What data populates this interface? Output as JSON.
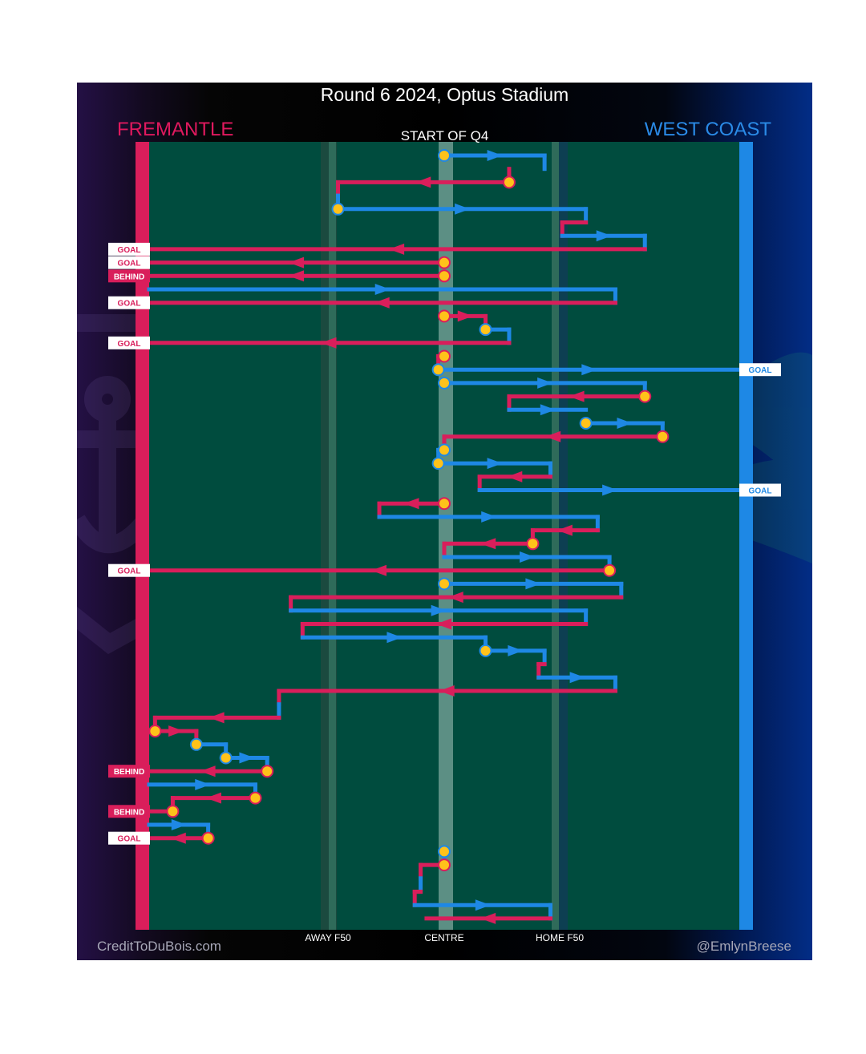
{
  "header": {
    "title": "Round 6 2024, Optus Stadium",
    "subtitle": "START OF Q4",
    "home_team": "FREMANTLE",
    "away_team": "WEST COAST"
  },
  "footer": {
    "credit_left": "CreditToDuBois.com",
    "credit_right": "@EmlynBreese"
  },
  "colors": {
    "fremantle": "#d91e5b",
    "west_coast": "#1e88e5",
    "ground": "#004c3e",
    "marker_fill": "#ffc21a"
  },
  "chart_data": {
    "type": "line",
    "description_axis": "x is field position from home goal (0) to away goal (100); each row is one possession chain in time order",
    "x_ticks": [
      {
        "label": "AWAY F50",
        "value": 32
      },
      {
        "label": "CENTRE",
        "value": 50
      },
      {
        "label": "HOME F50",
        "value": 68
      }
    ],
    "xlim": [
      0,
      100
    ],
    "rows": 57,
    "chains": [
      {
        "team": "west_coast",
        "segments": [
          [
            50,
            1,
            67,
            1
          ],
          [
            67,
            1,
            67,
            2
          ]
        ],
        "start_marker": [
          50,
          1
        ]
      },
      {
        "team": "fremantle",
        "segments": [
          [
            61,
            2,
            61,
            3
          ],
          [
            61,
            3,
            32,
            3
          ],
          [
            32,
            3,
            32,
            4
          ]
        ],
        "start_marker": [
          61,
          3
        ]
      },
      {
        "team": "west_coast",
        "segments": [
          [
            32,
            4,
            32,
            5
          ],
          [
            32,
            5,
            74,
            5
          ],
          [
            74,
            5,
            74,
            6
          ]
        ],
        "start_marker": [
          32,
          5
        ]
      },
      {
        "team": "fremantle",
        "segments": [
          [
            74,
            6,
            70,
            6
          ],
          [
            70,
            6,
            70,
            7
          ]
        ]
      },
      {
        "team": "west_coast",
        "segments": [
          [
            70,
            7,
            84,
            7
          ],
          [
            84,
            7,
            84,
            8
          ]
        ]
      },
      {
        "team": "fremantle",
        "segments": [
          [
            84,
            8,
            0,
            8
          ]
        ],
        "outcome": "GOAL"
      },
      {
        "team": "fremantle",
        "segments": [
          [
            50,
            9,
            0,
            9
          ]
        ],
        "outcome": "GOAL",
        "start_marker": [
          50,
          9
        ]
      },
      {
        "team": "fremantle",
        "segments": [
          [
            50,
            10,
            0,
            10
          ]
        ],
        "outcome": "BEHIND",
        "start_marker": [
          50,
          10
        ]
      },
      {
        "team": "west_coast",
        "segments": [
          [
            0,
            11,
            79,
            11
          ],
          [
            79,
            11,
            79,
            12
          ]
        ]
      },
      {
        "team": "fremantle",
        "segments": [
          [
            79,
            12,
            0,
            12
          ]
        ],
        "outcome": "GOAL"
      },
      {
        "team": "fremantle",
        "segments": [
          [
            50,
            13,
            57,
            13
          ],
          [
            57,
            13,
            57,
            14
          ]
        ],
        "start_marker": [
          50,
          13
        ]
      },
      {
        "team": "west_coast",
        "segments": [
          [
            57,
            14,
            61,
            14
          ],
          [
            61,
            14,
            61,
            15
          ]
        ],
        "start_marker": [
          57,
          14
        ]
      },
      {
        "team": "fremantle",
        "segments": [
          [
            61,
            15,
            0,
            15
          ]
        ],
        "outcome": "GOAL"
      },
      {
        "team": "fremantle",
        "segments": [
          [
            50,
            16,
            49,
            16
          ],
          [
            49,
            16,
            49,
            17
          ]
        ],
        "start_marker": [
          50,
          16
        ]
      },
      {
        "team": "west_coast",
        "segments": [
          [
            49,
            17,
            100,
            17
          ]
        ],
        "outcome": "GOAL",
        "start_marker": [
          49,
          17
        ]
      },
      {
        "team": "west_coast",
        "segments": [
          [
            50,
            18,
            84,
            18
          ],
          [
            84,
            18,
            84,
            19
          ]
        ],
        "start_marker": [
          50,
          18
        ]
      },
      {
        "team": "fremantle",
        "segments": [
          [
            84,
            19,
            61,
            19
          ],
          [
            61,
            19,
            61,
            20
          ]
        ],
        "start_marker": [
          84,
          19
        ]
      },
      {
        "team": "west_coast",
        "segments": [
          [
            61,
            20,
            74,
            20
          ]
        ]
      },
      {
        "team": "west_coast",
        "segments": [
          [
            74,
            21,
            87,
            21
          ],
          [
            87,
            21,
            87,
            22
          ]
        ],
        "start_marker": [
          74,
          21
        ]
      },
      {
        "team": "fremantle",
        "segments": [
          [
            87,
            22,
            50,
            22
          ],
          [
            50,
            22,
            50,
            23
          ]
        ],
        "start_marker": [
          87,
          22
        ]
      },
      {
        "team": "west_coast",
        "segments": [
          [
            50,
            23,
            49,
            23
          ],
          [
            49,
            23,
            49,
            24
          ]
        ],
        "start_marker": [
          50,
          23
        ]
      },
      {
        "team": "west_coast",
        "segments": [
          [
            49,
            24,
            68,
            24
          ],
          [
            68,
            24,
            68,
            25
          ]
        ],
        "start_marker": [
          49,
          24
        ]
      },
      {
        "team": "fremantle",
        "segments": [
          [
            68,
            25,
            56,
            25
          ],
          [
            56,
            25,
            56,
            26
          ]
        ]
      },
      {
        "team": "west_coast",
        "segments": [
          [
            56,
            26,
            100,
            26
          ]
        ],
        "outcome": "GOAL"
      },
      {
        "team": "fremantle",
        "segments": [
          [
            50,
            27,
            39,
            27
          ],
          [
            39,
            27,
            39,
            28
          ]
        ],
        "start_marker": [
          50,
          27
        ]
      },
      {
        "team": "west_coast",
        "segments": [
          [
            39,
            28,
            76,
            28
          ],
          [
            76,
            28,
            76,
            29
          ]
        ]
      },
      {
        "team": "fremantle",
        "segments": [
          [
            76,
            29,
            65,
            29
          ],
          [
            65,
            29,
            65,
            30
          ]
        ]
      },
      {
        "team": "fremantle",
        "segments": [
          [
            65,
            30,
            50,
            30
          ],
          [
            50,
            30,
            50,
            31
          ]
        ],
        "start_marker": [
          65,
          30
        ]
      },
      {
        "team": "west_coast",
        "segments": [
          [
            50,
            31,
            78,
            31
          ],
          [
            78,
            31,
            78,
            32
          ]
        ]
      },
      {
        "team": "fremantle",
        "segments": [
          [
            78,
            32,
            0,
            32
          ]
        ],
        "outcome": "GOAL",
        "start_marker": [
          78,
          32
        ]
      },
      {
        "team": "west_coast",
        "segments": [
          [
            50,
            33,
            80,
            33
          ],
          [
            80,
            33,
            80,
            34
          ]
        ],
        "start_marker": [
          50,
          33
        ]
      },
      {
        "team": "fremantle",
        "segments": [
          [
            80,
            34,
            24,
            34
          ],
          [
            24,
            34,
            24,
            35
          ]
        ]
      },
      {
        "team": "west_coast",
        "segments": [
          [
            24,
            35,
            74,
            35
          ],
          [
            74,
            35,
            74,
            36
          ]
        ]
      },
      {
        "team": "fremantle",
        "segments": [
          [
            74,
            36,
            26,
            36
          ],
          [
            26,
            36,
            26,
            37
          ]
        ]
      },
      {
        "team": "west_coast",
        "segments": [
          [
            26,
            37,
            57,
            37
          ],
          [
            57,
            37,
            57,
            38
          ]
        ]
      },
      {
        "team": "west_coast",
        "segments": [
          [
            57,
            38,
            67,
            38
          ],
          [
            67,
            38,
            67,
            39
          ]
        ],
        "start_marker": [
          57,
          38
        ]
      },
      {
        "team": "fremantle",
        "segments": [
          [
            67,
            39,
            66,
            39
          ],
          [
            66,
            39,
            66,
            40
          ]
        ]
      },
      {
        "team": "west_coast",
        "segments": [
          [
            66,
            40,
            79,
            40
          ],
          [
            79,
            40,
            79,
            41
          ]
        ]
      },
      {
        "team": "fremantle",
        "segments": [
          [
            79,
            41,
            22,
            41
          ],
          [
            22,
            41,
            22,
            42
          ]
        ]
      },
      {
        "team": "west_coast",
        "segments": [
          [
            22,
            42,
            22,
            43
          ]
        ]
      },
      {
        "team": "fremantle",
        "segments": [
          [
            22,
            43,
            1,
            43
          ],
          [
            1,
            43,
            1,
            44
          ]
        ]
      },
      {
        "team": "fremantle",
        "segments": [
          [
            1,
            44,
            8,
            44
          ],
          [
            8,
            44,
            8,
            45
          ]
        ],
        "start_marker": [
          1,
          44
        ]
      },
      {
        "team": "west_coast",
        "segments": [
          [
            8,
            45,
            13,
            45
          ],
          [
            13,
            45,
            13,
            46
          ]
        ],
        "start_marker": [
          8,
          45
        ]
      },
      {
        "team": "west_coast",
        "segments": [
          [
            13,
            46,
            20,
            46
          ],
          [
            20,
            46,
            20,
            47
          ]
        ],
        "start_marker": [
          13,
          46
        ]
      },
      {
        "team": "fremantle",
        "segments": [
          [
            20,
            47,
            0,
            47
          ]
        ],
        "outcome": "BEHIND",
        "start_marker": [
          20,
          47
        ]
      },
      {
        "team": "west_coast",
        "segments": [
          [
            0,
            48,
            18,
            48
          ],
          [
            18,
            48,
            18,
            49
          ]
        ]
      },
      {
        "team": "fremantle",
        "segments": [
          [
            18,
            49,
            4,
            49
          ],
          [
            4,
            49,
            4,
            50
          ]
        ],
        "start_marker": [
          18,
          49
        ]
      },
      {
        "team": "fremantle",
        "segments": [
          [
            4,
            50,
            0,
            50
          ]
        ],
        "outcome": "BEHIND",
        "start_marker": [
          4,
          50
        ]
      },
      {
        "team": "west_coast",
        "segments": [
          [
            0,
            51,
            10,
            51
          ],
          [
            10,
            51,
            10,
            52
          ]
        ]
      },
      {
        "team": "fremantle",
        "segments": [
          [
            10,
            52,
            0,
            52
          ]
        ],
        "outcome": "GOAL",
        "start_marker": [
          10,
          52
        ]
      },
      {
        "team": "west_coast",
        "segments": [
          [
            50,
            53,
            50,
            54
          ]
        ],
        "start_marker": [
          50,
          53
        ]
      },
      {
        "team": "fremantle",
        "segments": [
          [
            50,
            54,
            46,
            54
          ],
          [
            46,
            54,
            46,
            55
          ]
        ],
        "start_marker": [
          50,
          54
        ]
      },
      {
        "team": "west_coast",
        "segments": [
          [
            46,
            55,
            46,
            56
          ]
        ]
      },
      {
        "team": "fremantle",
        "segments": [
          [
            46,
            56,
            45,
            56
          ],
          [
            45,
            56,
            45,
            57
          ]
        ]
      },
      {
        "team": "west_coast",
        "segments": [
          [
            45,
            57,
            68,
            57
          ],
          [
            68,
            57,
            68,
            58
          ]
        ]
      },
      {
        "team": "fremantle",
        "segments": [
          [
            68,
            58,
            47,
            58
          ]
        ]
      }
    ]
  }
}
